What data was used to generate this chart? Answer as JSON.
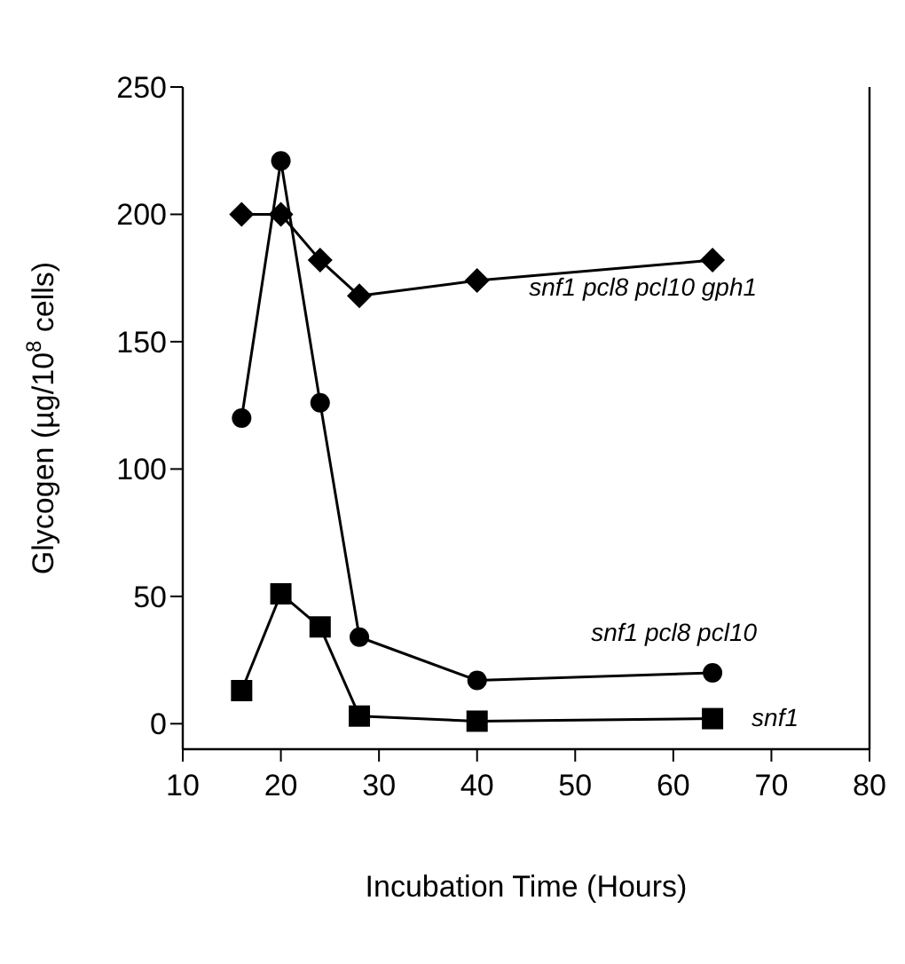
{
  "chart_data": {
    "type": "line",
    "xlabel": "Incubation Time (Hours)",
    "ylabel": "Glycogen (µg/10$^{8}$ cells)",
    "x": [
      16,
      20,
      24,
      28,
      40,
      64
    ],
    "series": [
      {
        "name": "snf1 pcl8 pcl10 gph1",
        "color": "#000000",
        "marker": "diamond",
        "values": [
          200,
          200,
          182,
          168,
          174,
          182
        ]
      },
      {
        "name": "snf1 pcl8 pcl10",
        "color": "#000000",
        "marker": "circle",
        "values": [
          120,
          221,
          126,
          34,
          17,
          20
        ]
      },
      {
        "name": "snf1",
        "color": "#000000",
        "marker": "square",
        "values": [
          13,
          51,
          38,
          3,
          1,
          2
        ]
      }
    ],
    "xlim": [
      10,
      80
    ],
    "xticks": [
      10,
      20,
      30,
      40,
      50,
      60,
      70,
      80
    ],
    "ylim": [
      -10,
      250
    ],
    "yticks": [
      0,
      50,
      100,
      150,
      200,
      250
    ],
    "grid": false,
    "line_style": "solid"
  }
}
